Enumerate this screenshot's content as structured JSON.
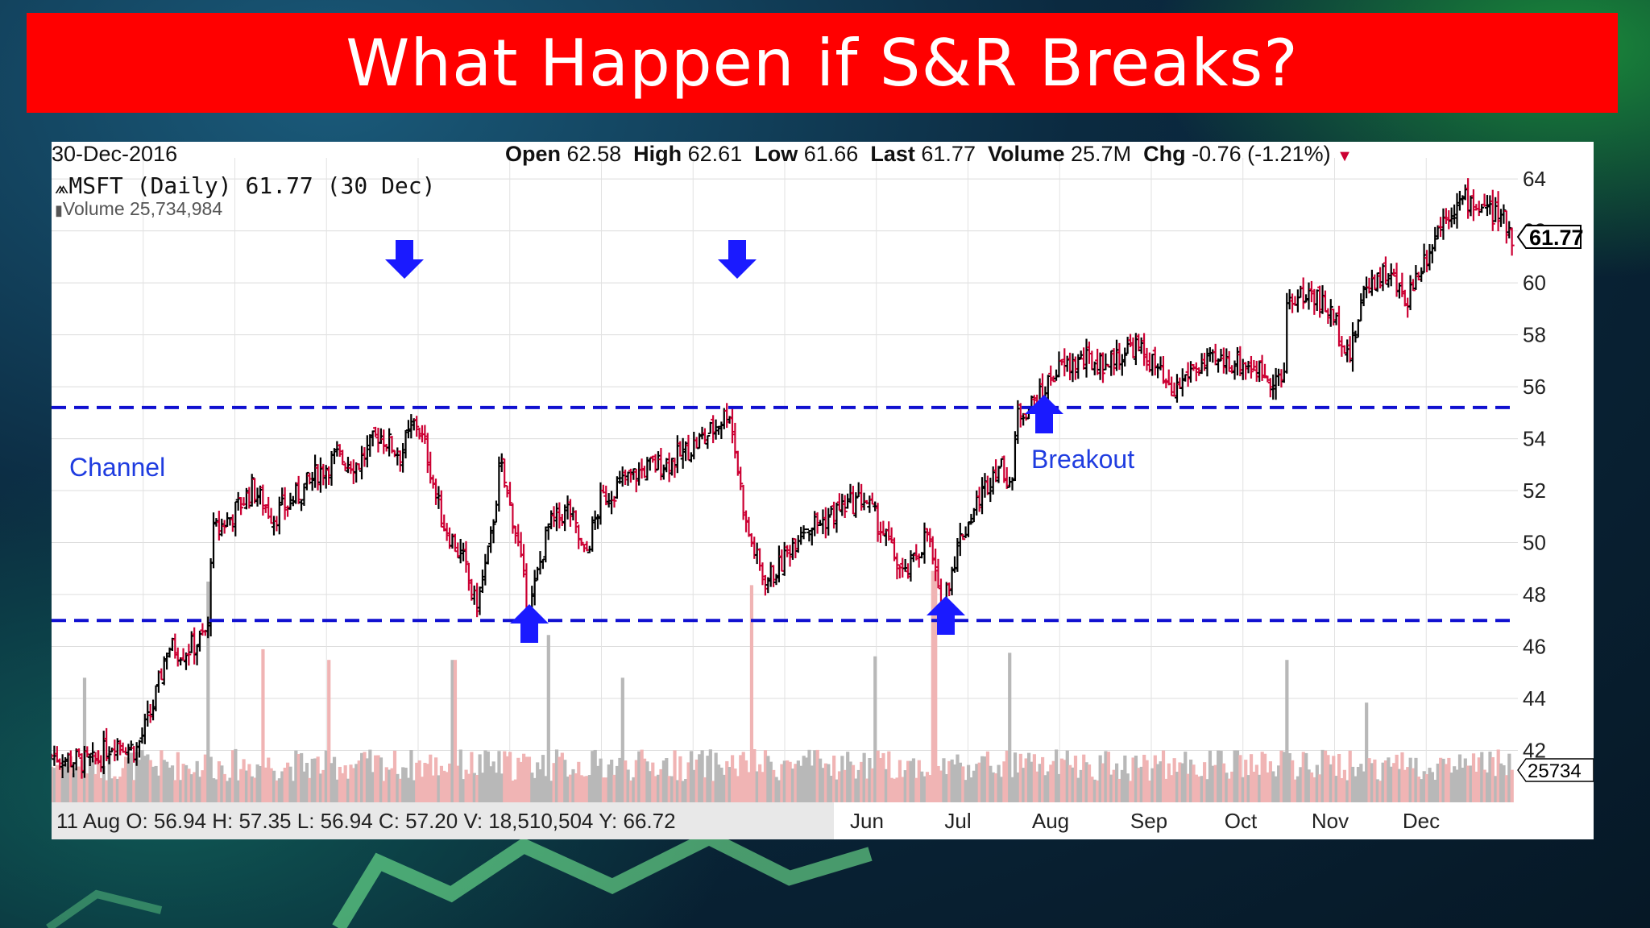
{
  "slide": {
    "title": "What Happen if  S&R Breaks?",
    "title_bar_color": "#ff0000"
  },
  "chart_header": {
    "date": "30-Dec-2016",
    "open_label": "Open",
    "open": "62.58",
    "high_label": "High",
    "high": "62.61",
    "low_label": "Low",
    "low": "61.66",
    "last_label": "Last",
    "last": "61.77",
    "volume_label": "Volume",
    "volume": "25.7M",
    "chg_label": "Chg",
    "chg": "-0.76 (-1.21%)",
    "symbol_line": "MSFT (Daily) 61.77 (30 Dec)",
    "volume_line": "Volume 25,734,984"
  },
  "bottom_info": "11 Aug O: 56.94   H: 57.35   L: 56.94   C: 57.20   V: 18,510,504   Y: 66.72",
  "annotations": {
    "channel": "Channel",
    "breakout": "Breakout"
  },
  "chart_data": {
    "type": "candlestick",
    "symbol": "MSFT",
    "ylim": [
      40,
      64.5
    ],
    "yticks": [
      42,
      44,
      46,
      48,
      50,
      52,
      54,
      56,
      58,
      60,
      62,
      64
    ],
    "x_month_labels": [
      "Jun",
      "Jul",
      "Aug",
      "Sep",
      "Oct",
      "Nov",
      "Dec"
    ],
    "last_price_label": "61.77",
    "volume_axis_label": "25734",
    "support_level": 47.0,
    "resistance_level": 55.2,
    "line_color": "#1010d0",
    "up_color": "#000000",
    "down_color": "#cc0033",
    "volume_up_color": "#b8b8b8",
    "volume_down_color": "#f0b4b4",
    "price_path": [
      [
        0,
        41.8
      ],
      [
        40,
        41.5
      ],
      [
        60,
        42.4
      ],
      [
        80,
        42.0
      ],
      [
        95,
        43.5
      ],
      [
        110,
        46.0
      ],
      [
        125,
        45.8
      ],
      [
        140,
        46.2
      ],
      [
        150,
        46.8
      ],
      [
        151,
        50.3
      ],
      [
        170,
        51.0
      ],
      [
        190,
        52.1
      ],
      [
        210,
        51.0
      ],
      [
        225,
        51.5
      ],
      [
        250,
        52.6
      ],
      [
        270,
        53.3
      ],
      [
        290,
        53.0
      ],
      [
        310,
        54.2
      ],
      [
        330,
        53.4
      ],
      [
        345,
        54.7
      ],
      [
        355,
        53.5
      ],
      [
        370,
        50.8
      ],
      [
        390,
        49.3
      ],
      [
        402,
        47.5
      ],
      [
        415,
        49.8
      ],
      [
        425,
        53.0
      ],
      [
        440,
        50.4
      ],
      [
        452,
        47.2
      ],
      [
        470,
        50.6
      ],
      [
        490,
        51.3
      ],
      [
        505,
        49.4
      ],
      [
        520,
        51.6
      ],
      [
        540,
        52.3
      ],
      [
        565,
        52.9
      ],
      [
        590,
        53.2
      ],
      [
        620,
        54.1
      ],
      [
        642,
        55.1
      ],
      [
        658,
        50.6
      ],
      [
        675,
        48.5
      ],
      [
        690,
        49.1
      ],
      [
        710,
        50.6
      ],
      [
        730,
        50.8
      ],
      [
        750,
        51.4
      ],
      [
        770,
        51.7
      ],
      [
        790,
        50.2
      ],
      [
        808,
        48.6
      ],
      [
        830,
        50.4
      ],
      [
        842,
        47.4
      ],
      [
        860,
        50.1
      ],
      [
        880,
        51.8
      ],
      [
        895,
        53.0
      ],
      [
        910,
        52.4
      ],
      [
        915,
        55.0
      ],
      [
        935,
        55.5
      ],
      [
        950,
        56.6
      ],
      [
        975,
        57.0
      ],
      [
        1000,
        56.9
      ],
      [
        1025,
        57.6
      ],
      [
        1045,
        56.8
      ],
      [
        1060,
        55.6
      ],
      [
        1080,
        56.7
      ],
      [
        1100,
        56.9
      ],
      [
        1125,
        57.0
      ],
      [
        1150,
        56.5
      ],
      [
        1168,
        56.2
      ],
      [
        1170,
        59.3
      ],
      [
        1195,
        59.6
      ],
      [
        1215,
        58.6
      ],
      [
        1230,
        57.2
      ],
      [
        1245,
        60.0
      ],
      [
        1265,
        60.4
      ],
      [
        1282,
        59.3
      ],
      [
        1300,
        60.9
      ],
      [
        1320,
        62.7
      ],
      [
        1340,
        63.2
      ],
      [
        1360,
        62.8
      ],
      [
        1375,
        62.4
      ],
      [
        1385,
        61.77
      ]
    ],
    "volume_spikes": [
      [
        32,
        0.35
      ],
      [
        148,
        0.62
      ],
      [
        200,
        0.43
      ],
      [
        262,
        0.4
      ],
      [
        381,
        0.4
      ],
      [
        470,
        0.47
      ],
      [
        540,
        0.35
      ],
      [
        663,
        0.61
      ],
      [
        780,
        0.41
      ],
      [
        836,
        0.65
      ],
      [
        908,
        0.42
      ],
      [
        1170,
        0.4
      ],
      [
        1245,
        0.28
      ]
    ]
  }
}
